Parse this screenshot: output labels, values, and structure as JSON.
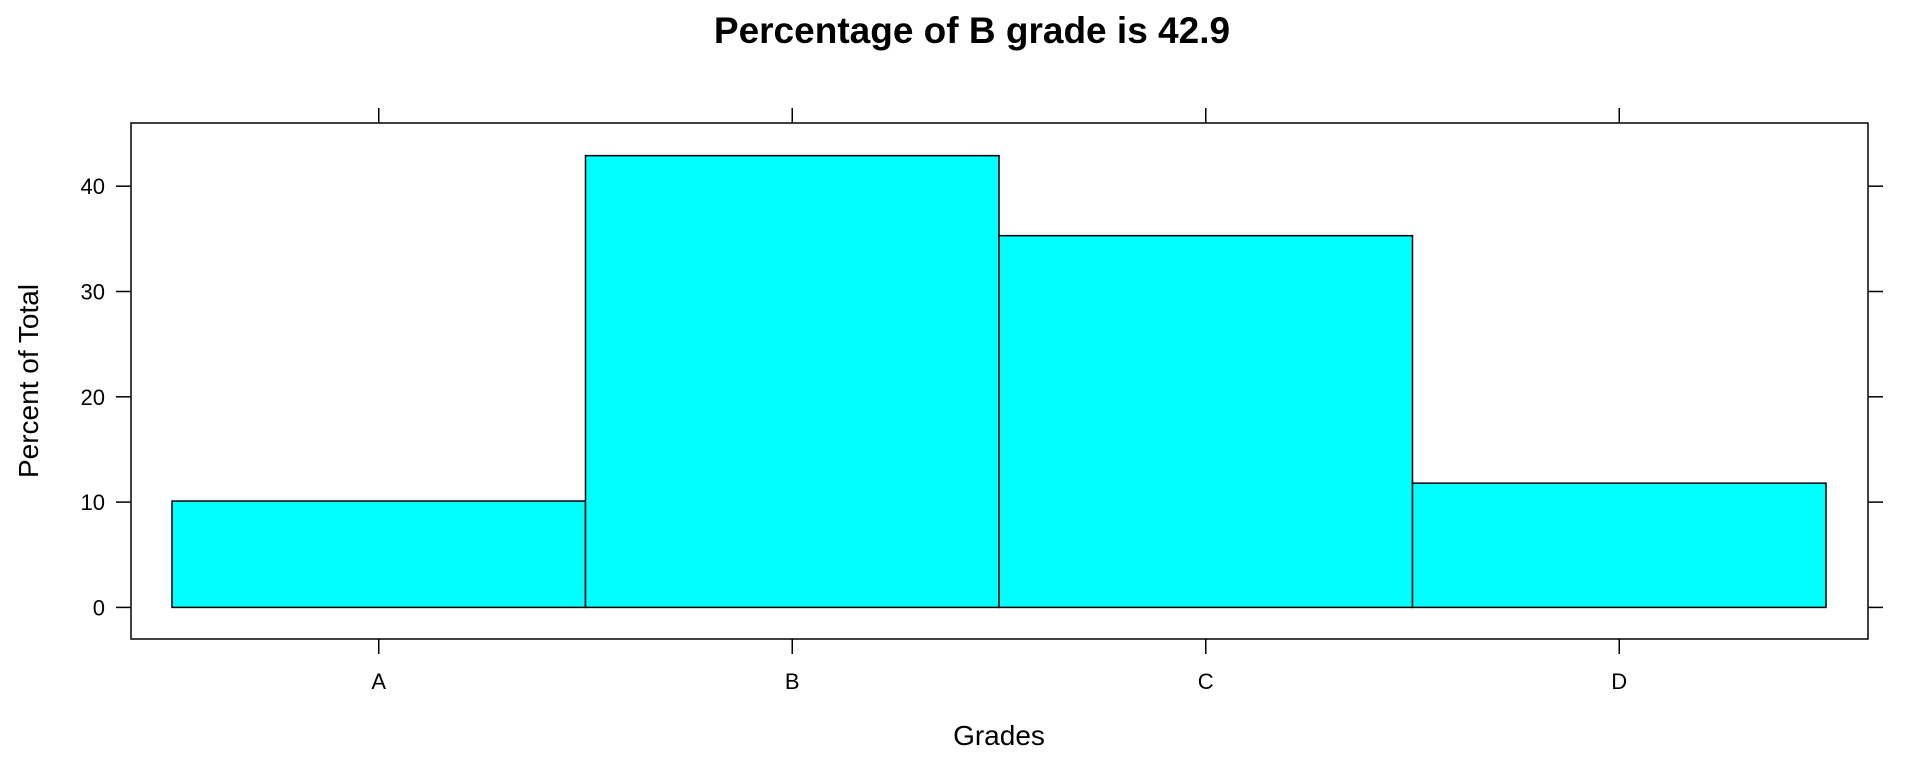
{
  "chart_data": {
    "type": "bar",
    "title": "Percentage of B grade is 42.9",
    "xlabel": "Grades",
    "ylabel": "Percent of Total",
    "categories": [
      "A",
      "B",
      "C",
      "D"
    ],
    "values": [
      10.1,
      42.9,
      35.3,
      11.8
    ],
    "yticks": [
      0,
      10,
      20,
      30,
      40
    ],
    "ylim": [
      -3,
      46
    ],
    "grid": false,
    "bar_color": "#00FFFF",
    "bar_border_color": "#000000"
  }
}
